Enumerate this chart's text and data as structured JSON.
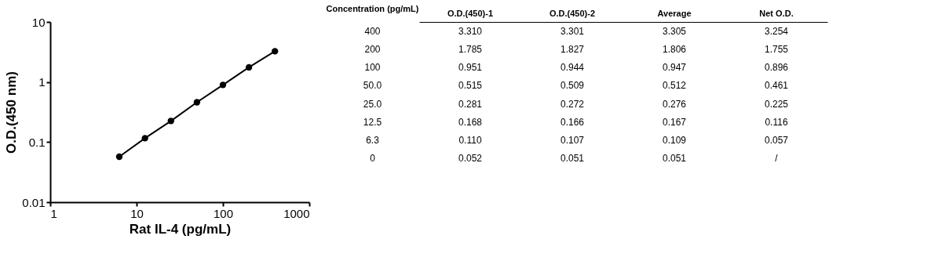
{
  "chart_data": [
    {
      "type": "line",
      "xlabel": "Rat IL-4 (pg/mL)",
      "ylabel": "O.D.(450 nm)",
      "log": "xy",
      "marker": "circle",
      "line_style": "solid",
      "grid": false,
      "legend": false,
      "x": [
        6.3,
        12.5,
        25,
        50,
        100,
        200,
        400
      ],
      "series": [
        {
          "color": "#000000",
          "values": [
            0.057,
            0.116,
            0.225,
            0.461,
            0.896,
            1.755,
            3.254
          ]
        }
      ],
      "xlim": [
        1,
        1000
      ],
      "xticks": [
        1,
        10,
        100,
        1000
      ],
      "ylim": [
        0.01,
        10
      ],
      "yticks": [
        0.01,
        0.1,
        1,
        10
      ]
    },
    {
      "type": "other",
      "ylabel": "Concentration (pg/mL)",
      "categories": [
        "O.D.(450)-1",
        "O.D.(450)-2",
        "Average",
        "Net O.D."
      ],
      "y_categories": [
        "400",
        "200",
        "100",
        "50.0",
        "25.0",
        "12.5",
        "6.3",
        "0"
      ],
      "cell_labels": [
        [
          "3.310",
          "3.301",
          "3.305",
          "3.254"
        ],
        [
          "1.785",
          "1.827",
          "1.806",
          "1.755"
        ],
        [
          "0.951",
          "0.944",
          "0.947",
          "0.896"
        ],
        [
          "0.515",
          "0.509",
          "0.512",
          "0.461"
        ],
        [
          "0.281",
          "0.272",
          "0.276",
          "0.225"
        ],
        [
          "0.168",
          "0.166",
          "0.167",
          "0.116"
        ],
        [
          "0.110",
          "0.107",
          "0.109",
          "0.057"
        ],
        [
          "0.052",
          "0.051",
          "0.051",
          "/"
        ]
      ]
    }
  ]
}
